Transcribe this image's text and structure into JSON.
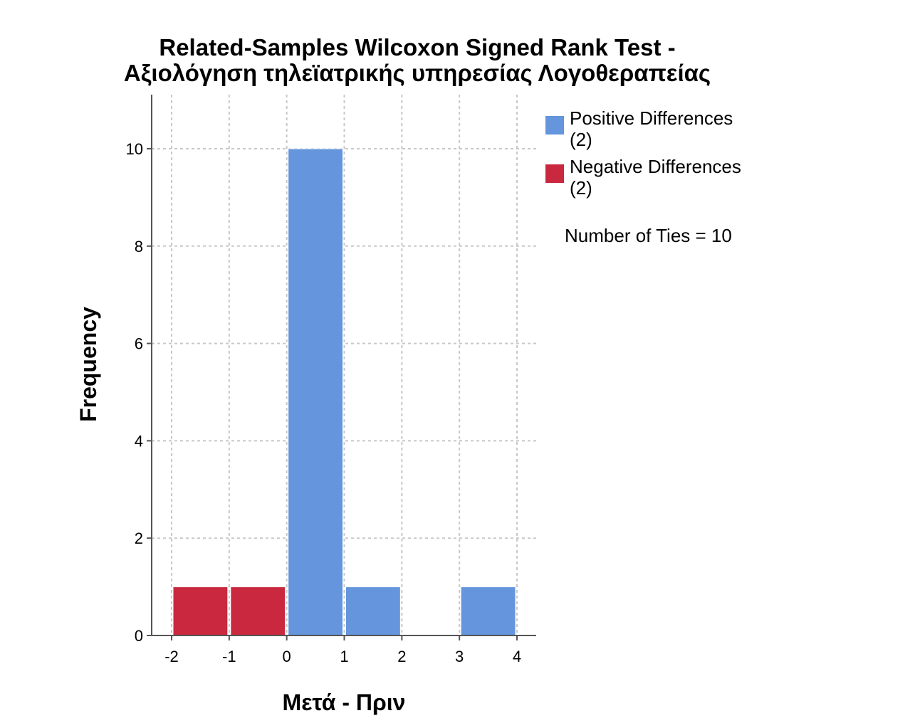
{
  "chart_data": {
    "type": "bar",
    "title_line1": "Related-Samples Wilcoxon Signed Rank Test -",
    "title_line2": "Αξιολόγηση τηλεϊατρικής υπηρεσίας Λογοθεραπείας",
    "xlabel": "Μετά - Πριν",
    "ylabel": "Frequency",
    "xlim": [
      -2,
      4
    ],
    "ylim": [
      0,
      11
    ],
    "x_ticks": [
      -2,
      -1,
      0,
      1,
      2,
      3,
      4
    ],
    "y_ticks": [
      0,
      2,
      4,
      6,
      8,
      10
    ],
    "grid": true,
    "bins": [
      {
        "x0": -2,
        "x1": -1,
        "value": 1,
        "series": "negative"
      },
      {
        "x0": -1,
        "x1": 0,
        "value": 1,
        "series": "negative"
      },
      {
        "x0": 0,
        "x1": 1,
        "value": 10,
        "series": "positive"
      },
      {
        "x0": 1,
        "x1": 2,
        "value": 1,
        "series": "positive"
      },
      {
        "x0": 2,
        "x1": 3,
        "value": 0,
        "series": "positive"
      },
      {
        "x0": 3,
        "x1": 4,
        "value": 1,
        "series": "positive"
      }
    ],
    "series": [
      {
        "key": "positive",
        "name": "Positive Differences",
        "count_label": "(2)",
        "color": "#6495dd"
      },
      {
        "key": "negative",
        "name": "Negative Differences",
        "count_label": "(2)",
        "color": "#c9283e"
      }
    ],
    "legend_position": "right",
    "annotation": "Number of Ties = 10"
  }
}
